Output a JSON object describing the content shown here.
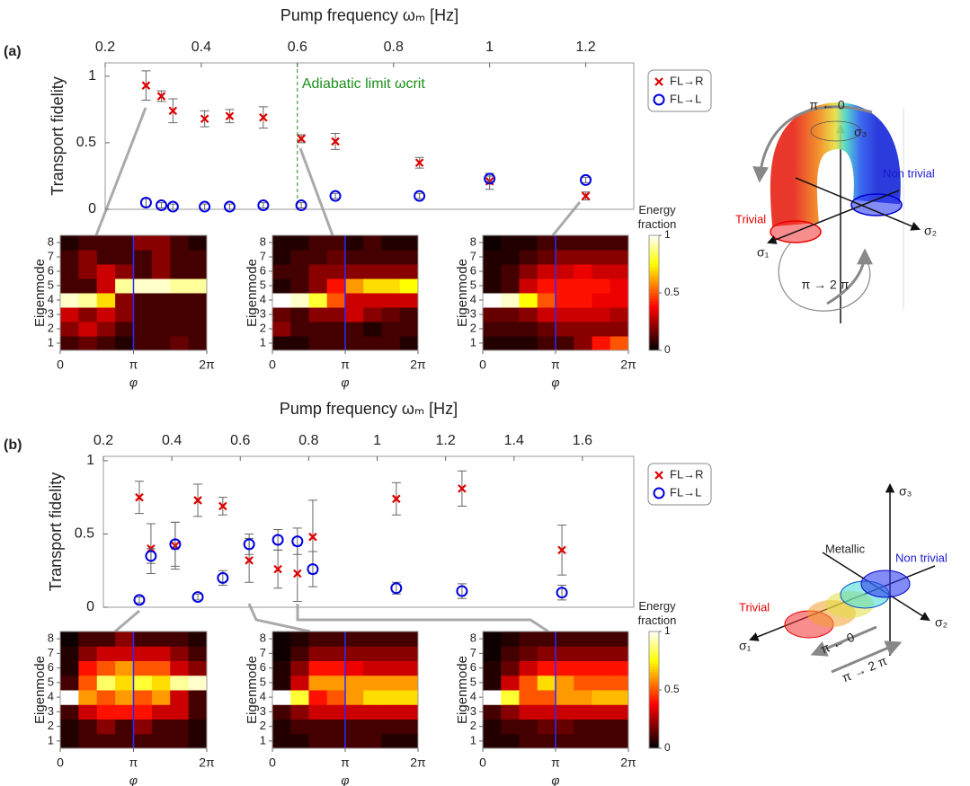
{
  "panels": [
    "(a)",
    "(b)"
  ],
  "chart_data": [
    {
      "type": "scatter",
      "xlabel": "Pump frequency ωₘ [Hz]",
      "ylabel": "Transport fidelity",
      "xlim": [
        0.2,
        1.3
      ],
      "xticks": [
        0.2,
        0.4,
        0.6,
        0.8,
        1,
        1.2
      ],
      "ylim": [
        0,
        1.1
      ],
      "yticks": [
        0,
        0.5,
        1
      ],
      "x": [
        0.285,
        0.317,
        0.341,
        0.407,
        0.459,
        0.529,
        0.608,
        0.679,
        0.854,
        1.0,
        1.2
      ],
      "series": [
        {
          "name": "FL→R",
          "color": "#e00000",
          "marker": "x",
          "values": [
            0.93,
            0.85,
            0.74,
            0.68,
            0.7,
            0.69,
            0.53,
            0.51,
            0.35,
            0.21,
            0.1
          ],
          "errors": [
            0.11,
            0.04,
            0.09,
            0.06,
            0.05,
            0.08,
            0.03,
            0.06,
            0.04,
            0.06,
            0.03
          ]
        },
        {
          "name": "FL→L",
          "color": "#0000e0",
          "marker": "o",
          "values": [
            0.05,
            0.03,
            0.02,
            0.02,
            0.02,
            0.03,
            0.03,
            0.1,
            0.1,
            0.23,
            0.22
          ],
          "errors": [
            0.03,
            0.02,
            0.02,
            0.02,
            0.02,
            0.02,
            0.02,
            0.02,
            0.02,
            0.02,
            0.02
          ]
        }
      ],
      "annotations": [
        {
          "text": "Adiabatic limit ωcrit",
          "x": 0.6,
          "color": "#1a8f1a"
        }
      ],
      "legend": "right"
    },
    {
      "type": "heatmap",
      "xlabel": "φ",
      "ylabel": "Eigenmode",
      "colormap": "hot",
      "clim": [
        0,
        1
      ],
      "vline": 3.14159,
      "xlim": [
        0,
        6.28318
      ],
      "xticks": [
        0,
        {
          "value": 3.14159,
          "label": "π"
        },
        {
          "value": 6.28318,
          "label": "2π"
        }
      ],
      "ylim": [
        0.5,
        8.5
      ],
      "yticks": [
        1,
        2,
        3,
        4,
        5,
        6,
        7,
        8
      ],
      "z": [
        [
          0.1,
          0.15,
          0.1,
          0.05,
          0.1,
          0.1,
          0.15,
          0.1
        ],
        [
          0.2,
          0.3,
          0.2,
          0.1,
          0.1,
          0.1,
          0.1,
          0.1
        ],
        [
          0.3,
          0.2,
          0.3,
          0.2,
          0.1,
          0.1,
          0.1,
          0.1
        ],
        [
          0.95,
          0.9,
          0.7,
          0.2,
          0.1,
          0.1,
          0.1,
          0.1
        ],
        [
          0.1,
          0.1,
          0.3,
          0.9,
          0.95,
          0.95,
          0.9,
          0.9
        ],
        [
          0.1,
          0.2,
          0.3,
          0.2,
          0.1,
          0.2,
          0.1,
          0.1
        ],
        [
          0.1,
          0.2,
          0.1,
          0.1,
          0.1,
          0.2,
          0.1,
          0.1
        ],
        [
          0.05,
          0.1,
          0.1,
          0.1,
          0.2,
          0.2,
          0.1,
          0.05
        ]
      ]
    },
    {
      "type": "heatmap",
      "xlabel": "φ",
      "ylabel": "Eigenmode",
      "colormap": "hot",
      "clim": [
        0,
        1
      ],
      "vline": 3.14159,
      "xlim": [
        0,
        6.28318
      ],
      "xticks": [
        0,
        {
          "value": 3.14159,
          "label": "π"
        },
        {
          "value": 6.28318,
          "label": "2π"
        }
      ],
      "ylim": [
        0.5,
        8.5
      ],
      "yticks": [
        1,
        2,
        3,
        4,
        5,
        6,
        7,
        8
      ],
      "z": [
        [
          0.05,
          0.05,
          0.1,
          0.1,
          0.1,
          0.1,
          0.1,
          0.05
        ],
        [
          0.2,
          0.1,
          0.1,
          0.1,
          0.1,
          0.05,
          0.1,
          0.1
        ],
        [
          0.15,
          0.1,
          0.2,
          0.2,
          0.3,
          0.2,
          0.15,
          0.1
        ],
        [
          1,
          0.95,
          0.8,
          0.5,
          0.3,
          0.3,
          0.3,
          0.3
        ],
        [
          0.05,
          0.1,
          0.2,
          0.4,
          0.6,
          0.7,
          0.7,
          0.75
        ],
        [
          0.1,
          0.1,
          0.2,
          0.2,
          0.2,
          0.2,
          0.2,
          0.2
        ],
        [
          0.05,
          0.1,
          0.1,
          0.15,
          0.1,
          0.1,
          0.1,
          0.1
        ],
        [
          0.05,
          0.05,
          0.1,
          0.1,
          0.05,
          0.1,
          0.05,
          0.05
        ]
      ]
    },
    {
      "type": "heatmap",
      "xlabel": "φ",
      "ylabel": "Eigenmode",
      "colormap": "hot",
      "clim": [
        0,
        1
      ],
      "vline": 3.14159,
      "xlim": [
        0,
        6.28318
      ],
      "xticks": [
        0,
        {
          "value": 3.14159,
          "label": "π"
        },
        {
          "value": 6.28318,
          "label": "2π"
        }
      ],
      "ylim": [
        0.5,
        8.5
      ],
      "yticks": [
        1,
        2,
        3,
        4,
        5,
        6,
        7,
        8
      ],
      "z": [
        [
          0.05,
          0.05,
          0.05,
          0.1,
          0.1,
          0.2,
          0.4,
          0.5
        ],
        [
          0.1,
          0.1,
          0.1,
          0.15,
          0.2,
          0.2,
          0.2,
          0.2
        ],
        [
          0.15,
          0.15,
          0.2,
          0.3,
          0.3,
          0.3,
          0.3,
          0.25
        ],
        [
          1,
          0.95,
          0.75,
          0.5,
          0.4,
          0.4,
          0.35,
          0.35
        ],
        [
          0.05,
          0.1,
          0.3,
          0.4,
          0.4,
          0.4,
          0.4,
          0.35
        ],
        [
          0.05,
          0.1,
          0.2,
          0.3,
          0.3,
          0.35,
          0.3,
          0.3
        ],
        [
          0.05,
          0.05,
          0.1,
          0.15,
          0.2,
          0.2,
          0.2,
          0.2
        ],
        [
          0.02,
          0.05,
          0.05,
          0.1,
          0.1,
          0.1,
          0.1,
          0.1
        ]
      ],
      "colorbar": {
        "title": "Energy fraction",
        "ticks": [
          0,
          0.5,
          1
        ]
      }
    },
    {
      "type": "scatter",
      "xlabel": "Pump frequency ωₘ [Hz]",
      "ylabel": "Transport fidelity",
      "xlim": [
        0.2,
        1.75
      ],
      "xticks": [
        0.2,
        0.4,
        0.6,
        0.8,
        1,
        1.2,
        1.4,
        1.6
      ],
      "ylim": [
        0,
        1.03
      ],
      "yticks": [
        0,
        0.5,
        1
      ],
      "x": [
        0.305,
        0.339,
        0.41,
        0.476,
        0.549,
        0.626,
        0.71,
        0.767,
        0.812,
        1.056,
        1.248,
        1.54
      ],
      "series": [
        {
          "name": "FL→R",
          "color": "#e00000",
          "marker": "x",
          "values": [
            0.75,
            0.4,
            0.42,
            0.73,
            0.69,
            0.32,
            0.26,
            0.23,
            0.48,
            0.74,
            0.81,
            0.39
          ],
          "errors": [
            0.11,
            0.17,
            0.16,
            0.11,
            0.06,
            0.15,
            0.13,
            0.19,
            0.25,
            0.11,
            0.12,
            0.17
          ]
        },
        {
          "name": "FL→L",
          "color": "#0000e0",
          "marker": "o",
          "values": [
            0.05,
            0.35,
            0.43,
            0.07,
            0.2,
            0.43,
            0.46,
            0.45,
            0.26,
            0.13,
            0.11,
            0.1
          ],
          "errors": [
            0.02,
            0.05,
            0.15,
            0.02,
            0.05,
            0.07,
            0.07,
            0.09,
            0.12,
            0.04,
            0.05,
            0.05
          ]
        }
      ],
      "legend": "right"
    },
    {
      "type": "heatmap",
      "xlabel": "φ",
      "ylabel": "Eigenmode",
      "colormap": "hot",
      "clim": [
        0,
        1
      ],
      "vline": 3.14159,
      "xlim": [
        0,
        6.28318
      ],
      "xticks": [
        0,
        {
          "value": 3.14159,
          "label": "π"
        },
        {
          "value": 6.28318,
          "label": "2π"
        }
      ],
      "ylim": [
        0.5,
        8.5
      ],
      "yticks": [
        1,
        2,
        3,
        4,
        5,
        6,
        7,
        8
      ],
      "z": [
        [
          0.05,
          0.1,
          0.1,
          0.1,
          0.1,
          0.1,
          0.1,
          0.05
        ],
        [
          0.05,
          0.1,
          0.2,
          0.1,
          0.2,
          0.1,
          0.1,
          0.05
        ],
        [
          0.1,
          0.3,
          0.4,
          0.4,
          0.4,
          0.3,
          0.3,
          0.1
        ],
        [
          1,
          0.6,
          0.5,
          0.6,
          0.5,
          0.6,
          0.3,
          0.1
        ],
        [
          0.1,
          0.5,
          0.85,
          0.7,
          0.8,
          0.7,
          0.9,
          0.95
        ],
        [
          0.05,
          0.4,
          0.5,
          0.6,
          0.5,
          0.5,
          0.3,
          0.2
        ],
        [
          0.05,
          0.2,
          0.3,
          0.3,
          0.3,
          0.3,
          0.2,
          0.1
        ],
        [
          0.02,
          0.1,
          0.1,
          0.2,
          0.1,
          0.1,
          0.1,
          0.05
        ]
      ]
    },
    {
      "type": "heatmap",
      "xlabel": "φ",
      "ylabel": "Eigenmode",
      "colormap": "hot",
      "clim": [
        0,
        1
      ],
      "vline": 3.14159,
      "xlim": [
        0,
        6.28318
      ],
      "xticks": [
        0,
        {
          "value": 3.14159,
          "label": "π"
        },
        {
          "value": 6.28318,
          "label": "2π"
        }
      ],
      "ylim": [
        0.5,
        8.5
      ],
      "yticks": [
        1,
        2,
        3,
        4,
        5,
        6,
        7,
        8
      ],
      "z": [
        [
          0.05,
          0.05,
          0.1,
          0.1,
          0.1,
          0.1,
          0.05,
          0.05
        ],
        [
          0.05,
          0.1,
          0.1,
          0.1,
          0.1,
          0.1,
          0.1,
          0.1
        ],
        [
          0.1,
          0.2,
          0.3,
          0.3,
          0.3,
          0.3,
          0.3,
          0.3
        ],
        [
          1,
          0.8,
          0.4,
          0.5,
          0.6,
          0.7,
          0.7,
          0.7
        ],
        [
          0.05,
          0.3,
          0.6,
          0.6,
          0.6,
          0.6,
          0.6,
          0.6
        ],
        [
          0.05,
          0.2,
          0.4,
          0.4,
          0.35,
          0.3,
          0.3,
          0.3
        ],
        [
          0.02,
          0.1,
          0.2,
          0.2,
          0.2,
          0.2,
          0.2,
          0.2
        ],
        [
          0.02,
          0.05,
          0.1,
          0.1,
          0.1,
          0.1,
          0.1,
          0.1
        ]
      ]
    },
    {
      "type": "heatmap",
      "xlabel": "φ",
      "ylabel": "Eigenmode",
      "colormap": "hot",
      "clim": [
        0,
        1
      ],
      "vline": 3.14159,
      "xlim": [
        0,
        6.28318
      ],
      "xticks": [
        0,
        {
          "value": 3.14159,
          "label": "π"
        },
        {
          "value": 6.28318,
          "label": "2π"
        }
      ],
      "ylim": [
        0.5,
        8.5
      ],
      "yticks": [
        1,
        2,
        3,
        4,
        5,
        6,
        7,
        8
      ],
      "z": [
        [
          0.05,
          0.05,
          0.1,
          0.1,
          0.1,
          0.1,
          0.1,
          0.1
        ],
        [
          0.05,
          0.1,
          0.1,
          0.15,
          0.15,
          0.1,
          0.1,
          0.1
        ],
        [
          0.1,
          0.2,
          0.3,
          0.3,
          0.3,
          0.3,
          0.3,
          0.3
        ],
        [
          1,
          0.8,
          0.5,
          0.5,
          0.6,
          0.6,
          0.65,
          0.65
        ],
        [
          0.05,
          0.3,
          0.5,
          0.7,
          0.6,
          0.5,
          0.5,
          0.5
        ],
        [
          0.05,
          0.15,
          0.3,
          0.4,
          0.4,
          0.4,
          0.4,
          0.4
        ],
        [
          0.02,
          0.1,
          0.15,
          0.2,
          0.2,
          0.2,
          0.2,
          0.2
        ],
        [
          0.02,
          0.05,
          0.1,
          0.1,
          0.1,
          0.1,
          0.1,
          0.1
        ]
      ],
      "colorbar": {
        "title": "Energy fraction",
        "ticks": [
          0,
          0.5,
          1
        ]
      }
    }
  ],
  "diagrams": {
    "a": {
      "top_arrow": "π ← 0",
      "bottom_arrow": "π → 2 π",
      "trivial": "Trivial",
      "nontrivial": "Non trivial",
      "axes": [
        "σ₃",
        "σ₁",
        "σ₂"
      ]
    },
    "b": {
      "top_arrow": "π ← 0",
      "bottom_arrow": "π → 2 π",
      "trivial": "Trivial",
      "metallic": "Metallic",
      "nontrivial": "Non trivial",
      "axes": [
        "σ₃",
        "σ₁",
        "σ₂"
      ]
    }
  }
}
